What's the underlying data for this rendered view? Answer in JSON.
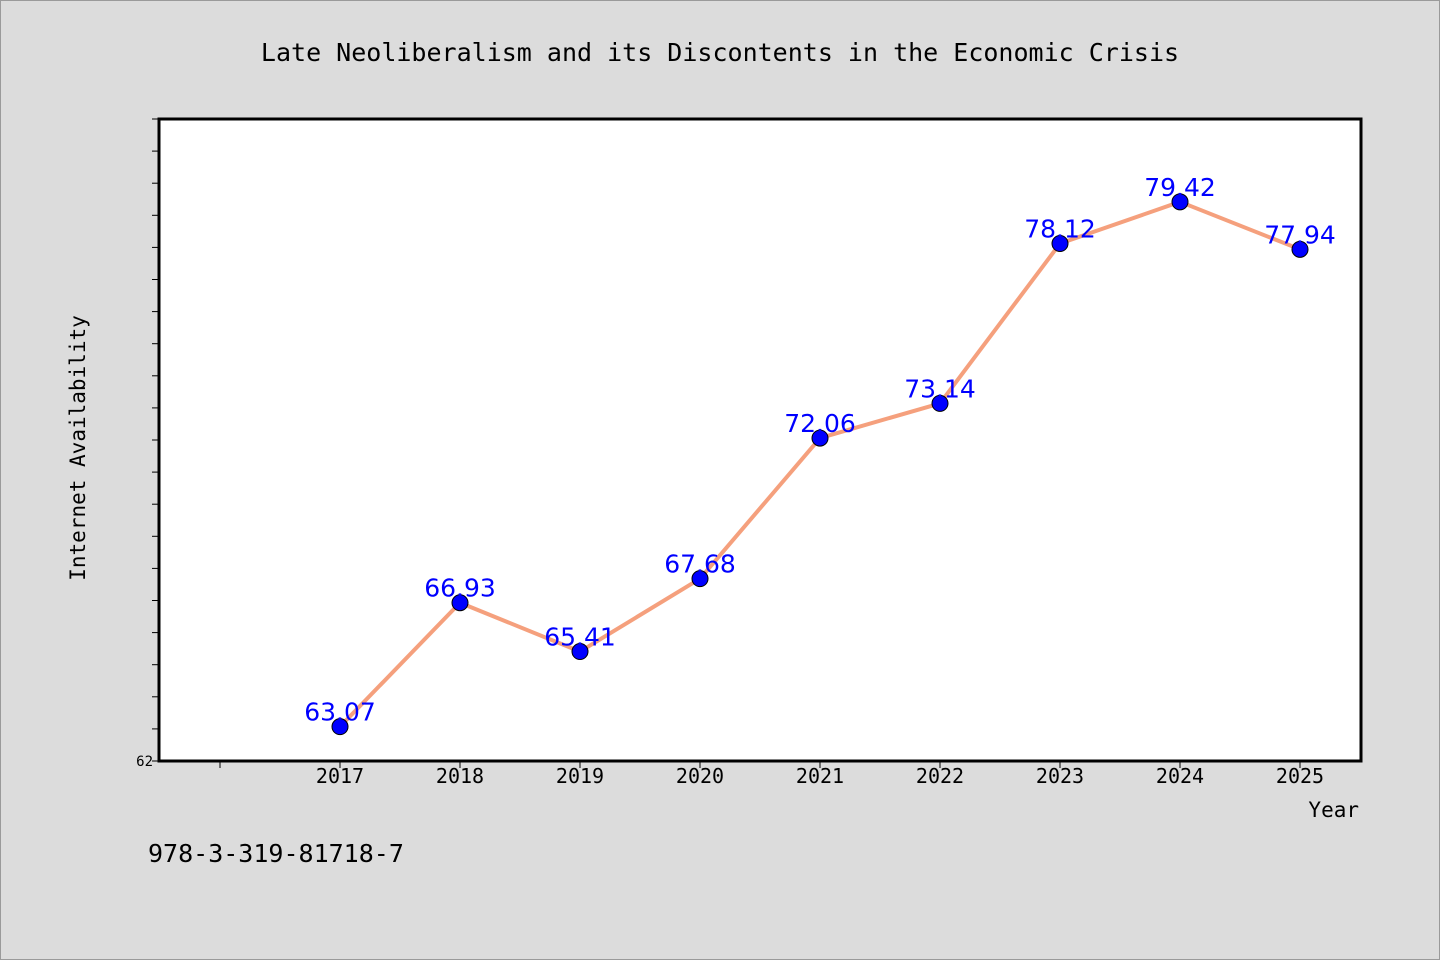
{
  "chart_data": {
    "type": "line",
    "title": "Late Neoliberalism and its Discontents in the Economic Crisis",
    "xlabel": "Year",
    "ylabel": "Internet Availability",
    "categories": [
      "2017",
      "2018",
      "2019",
      "2020",
      "2021",
      "2022",
      "2023",
      "2024",
      "2025"
    ],
    "values": [
      63.07,
      66.93,
      65.41,
      67.68,
      72.06,
      73.14,
      78.12,
      79.42,
      77.94
    ],
    "data_labels": [
      "63.07",
      "66.93",
      "65.41",
      "67.68",
      "72.06",
      "73.14",
      "78.12",
      "79.42",
      "77.94"
    ],
    "ylim": [
      62,
      82
    ],
    "ytick_labels": [
      "62"
    ],
    "grid": false,
    "line_color": "#f5a07d",
    "marker_color": "#0000ff",
    "label_color": "#0000ff"
  },
  "footer": {
    "isbn": "978-3-319-81718-7"
  }
}
